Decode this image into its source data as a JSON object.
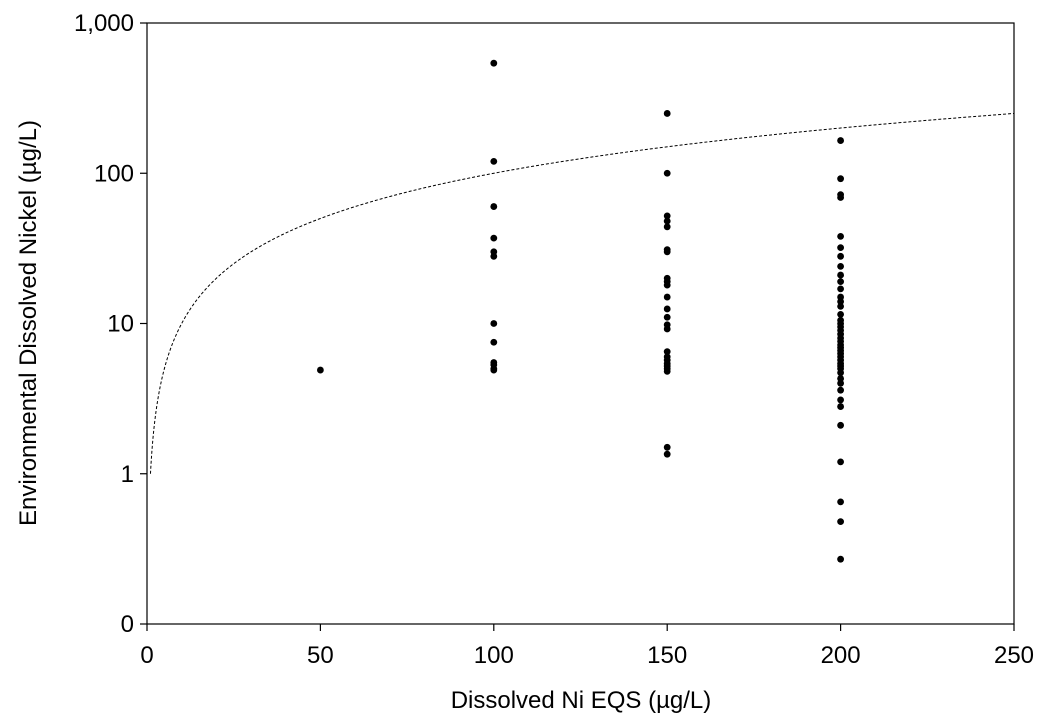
{
  "chart_data": {
    "type": "scatter",
    "title": "",
    "xlabel": "Dissolved Ni EQS (µg/L)",
    "ylabel": "Environmental Dissolved Nickel (µg/L)",
    "xlim": [
      0,
      250
    ],
    "ylim": [
      0.1,
      1000
    ],
    "y_scale": "log",
    "grid": false,
    "legend": "none",
    "x_ticks": [
      0,
      50,
      100,
      150,
      200,
      250
    ],
    "x_tick_labels": [
      "0",
      "50",
      "100",
      "150",
      "200",
      "250"
    ],
    "y_ticks": [
      0.1,
      1,
      10,
      100,
      1000
    ],
    "y_tick_labels": [
      "0",
      "1",
      "10",
      "100",
      "1,000"
    ],
    "reference_line": {
      "style": "dashed",
      "relation": "y = x",
      "x_range": [
        1,
        250
      ]
    },
    "points": [
      {
        "x": 50,
        "y": 4.9
      },
      {
        "x": 100,
        "y": 540
      },
      {
        "x": 100,
        "y": 120
      },
      {
        "x": 100,
        "y": 60
      },
      {
        "x": 100,
        "y": 37
      },
      {
        "x": 100,
        "y": 30
      },
      {
        "x": 100,
        "y": 28
      },
      {
        "x": 100,
        "y": 10
      },
      {
        "x": 100,
        "y": 7.5
      },
      {
        "x": 100,
        "y": 5.5
      },
      {
        "x": 100,
        "y": 5.3
      },
      {
        "x": 100,
        "y": 5.0
      },
      {
        "x": 100,
        "y": 4.9
      },
      {
        "x": 150,
        "y": 250
      },
      {
        "x": 150,
        "y": 100
      },
      {
        "x": 150,
        "y": 52
      },
      {
        "x": 150,
        "y": 48
      },
      {
        "x": 150,
        "y": 44
      },
      {
        "x": 150,
        "y": 31
      },
      {
        "x": 150,
        "y": 30
      },
      {
        "x": 150,
        "y": 20
      },
      {
        "x": 150,
        "y": 19
      },
      {
        "x": 150,
        "y": 18
      },
      {
        "x": 150,
        "y": 15
      },
      {
        "x": 150,
        "y": 12.5
      },
      {
        "x": 150,
        "y": 11
      },
      {
        "x": 150,
        "y": 9.8
      },
      {
        "x": 150,
        "y": 9.2
      },
      {
        "x": 150,
        "y": 6.5
      },
      {
        "x": 150,
        "y": 6.0
      },
      {
        "x": 150,
        "y": 5.7
      },
      {
        "x": 150,
        "y": 5.4
      },
      {
        "x": 150,
        "y": 5.2
      },
      {
        "x": 150,
        "y": 5.0
      },
      {
        "x": 150,
        "y": 4.8
      },
      {
        "x": 150,
        "y": 1.5
      },
      {
        "x": 150,
        "y": 1.35
      },
      {
        "x": 200,
        "y": 165
      },
      {
        "x": 200,
        "y": 92
      },
      {
        "x": 200,
        "y": 72
      },
      {
        "x": 200,
        "y": 69
      },
      {
        "x": 200,
        "y": 38
      },
      {
        "x": 200,
        "y": 32
      },
      {
        "x": 200,
        "y": 28
      },
      {
        "x": 200,
        "y": 24
      },
      {
        "x": 200,
        "y": 21
      },
      {
        "x": 200,
        "y": 19
      },
      {
        "x": 200,
        "y": 17
      },
      {
        "x": 200,
        "y": 15
      },
      {
        "x": 200,
        "y": 14
      },
      {
        "x": 200,
        "y": 13
      },
      {
        "x": 200,
        "y": 11.5
      },
      {
        "x": 200,
        "y": 10.5
      },
      {
        "x": 200,
        "y": 10
      },
      {
        "x": 200,
        "y": 9.5
      },
      {
        "x": 200,
        "y": 9
      },
      {
        "x": 200,
        "y": 8.5
      },
      {
        "x": 200,
        "y": 8
      },
      {
        "x": 200,
        "y": 7.6
      },
      {
        "x": 200,
        "y": 7.2
      },
      {
        "x": 200,
        "y": 6.9
      },
      {
        "x": 200,
        "y": 6.6
      },
      {
        "x": 200,
        "y": 6.3
      },
      {
        "x": 200,
        "y": 6.0
      },
      {
        "x": 200,
        "y": 5.7
      },
      {
        "x": 200,
        "y": 5.4
      },
      {
        "x": 200,
        "y": 5.2
      },
      {
        "x": 200,
        "y": 5.0
      },
      {
        "x": 200,
        "y": 4.7
      },
      {
        "x": 200,
        "y": 4.3
      },
      {
        "x": 200,
        "y": 4.0
      },
      {
        "x": 200,
        "y": 3.6
      },
      {
        "x": 200,
        "y": 3.1
      },
      {
        "x": 200,
        "y": 2.8
      },
      {
        "x": 200,
        "y": 2.1
      },
      {
        "x": 200,
        "y": 1.2
      },
      {
        "x": 200,
        "y": 0.65
      },
      {
        "x": 200,
        "y": 0.48
      },
      {
        "x": 200,
        "y": 0.27
      }
    ]
  }
}
